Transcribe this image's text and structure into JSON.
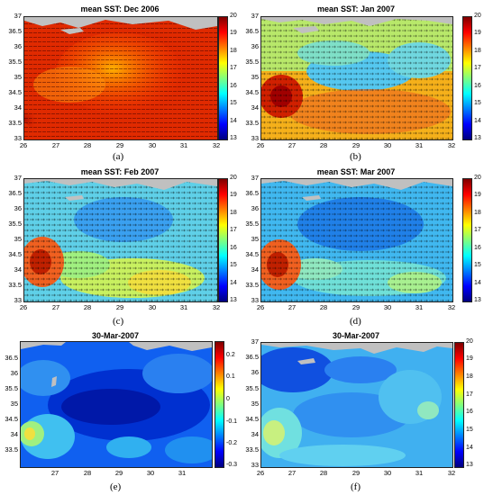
{
  "colors": {
    "land": "#c0c0c0",
    "jet_stops": [
      "#00007f",
      "#0000ff",
      "#007fff",
      "#00ffff",
      "#7fff7f",
      "#ffff00",
      "#ff7f00",
      "#ff0000",
      "#7f0000"
    ]
  },
  "panels": [
    {
      "id": "a",
      "title": "mean SST: Dec 2006",
      "label": "(a)",
      "colorbar_ticks": [
        "20",
        "19",
        "18",
        "17",
        "16",
        "15",
        "14",
        "13"
      ],
      "y_ticks": [
        "37",
        "36.5",
        "36",
        "35.5",
        "35",
        "34.5",
        "34",
        "33.5",
        "33"
      ],
      "x_ticks": [
        "26",
        "27",
        "28",
        "29",
        "30",
        "31",
        "32"
      ]
    },
    {
      "id": "b",
      "title": "mean SST: Jan 2007",
      "label": "(b)",
      "colorbar_ticks": [
        "20",
        "19",
        "18",
        "17",
        "16",
        "15",
        "14",
        "13"
      ],
      "y_ticks": [
        "37",
        "36.5",
        "36",
        "35.5",
        "35",
        "34.5",
        "34",
        "33.5",
        "33"
      ],
      "x_ticks": [
        "26",
        "27",
        "28",
        "29",
        "30",
        "31",
        "32"
      ]
    },
    {
      "id": "c",
      "title": "mean SST: Feb 2007",
      "label": "(c)",
      "colorbar_ticks": [
        "20",
        "19",
        "18",
        "17",
        "16",
        "15",
        "14",
        "13"
      ],
      "y_ticks": [
        "37",
        "36.5",
        "36",
        "35.5",
        "35",
        "34.5",
        "34",
        "33.5",
        "33"
      ],
      "x_ticks": [
        "26",
        "27",
        "28",
        "29",
        "30",
        "31",
        "32"
      ]
    },
    {
      "id": "d",
      "title": "mean SST: Mar 2007",
      "label": "(d)",
      "colorbar_ticks": [
        "20",
        "19",
        "18",
        "17",
        "16",
        "15",
        "14",
        "13"
      ],
      "y_ticks": [
        "37",
        "36.5",
        "36",
        "35.5",
        "35",
        "34.5",
        "34",
        "33.5",
        "33"
      ],
      "x_ticks": [
        "26",
        "27",
        "28",
        "29",
        "30",
        "31",
        "32"
      ]
    },
    {
      "id": "e",
      "title": "30-Mar-2007",
      "label": "(e)",
      "colorbar_ticks": [
        "0.2",
        "0.1",
        "0",
        "-0.1",
        "-0.2",
        "-0.3"
      ],
      "y_ticks": [
        "36.5",
        "36",
        "35.5",
        "35",
        "34.5",
        "34",
        "33.5"
      ],
      "x_ticks": [
        "27",
        "28",
        "29",
        "30",
        "31"
      ]
    },
    {
      "id": "f",
      "title": "30-Mar-2007",
      "label": "(f)",
      "colorbar_ticks": [
        "20",
        "19",
        "18",
        "17",
        "16",
        "15",
        "14",
        "13"
      ],
      "y_ticks": [
        "37",
        "36.5",
        "36",
        "35.5",
        "35",
        "34.5",
        "34",
        "33.5",
        "33"
      ],
      "x_ticks": [
        "26",
        "27",
        "28",
        "29",
        "30",
        "31",
        "32"
      ]
    }
  ]
}
